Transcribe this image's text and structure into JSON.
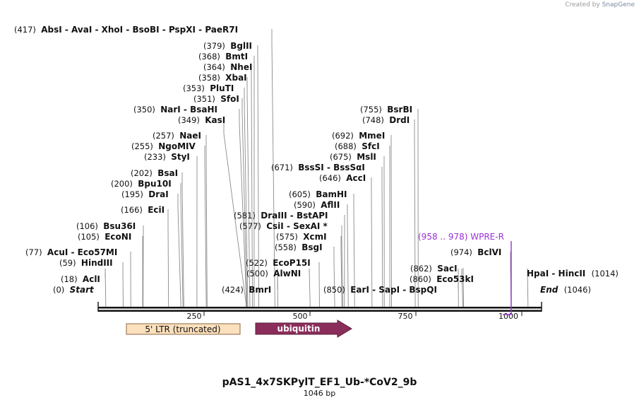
{
  "credit": {
    "prefix": "Created by",
    "brand": "SnapGene"
  },
  "title": "pAS1_4x7SKPylT_EF1_Ub-*CoV2_9b",
  "length_label": "1046 bp",
  "seq_length": 1046,
  "ticks": [
    "250",
    "500",
    "750",
    "1000"
  ],
  "features": [
    {
      "name": "5' LTR (truncated)",
      "start": 69,
      "end": 337,
      "color": "#fde0bd",
      "stroke": "#8a6a40",
      "text_color": "#111111",
      "kind": "box"
    },
    {
      "name": "ubiquitin",
      "start": 373,
      "end": 600,
      "color": "#8b2d5a",
      "stroke": "#5a1d3b",
      "text_color": "#ffffff",
      "kind": "arrow"
    }
  ],
  "primer": {
    "label": "(958 .. 978)  WPRE-R",
    "start": 958,
    "end": 978,
    "color": "#9b30d9"
  },
  "sites": [
    {
      "label": "(417)  AbsI  - AvaI  - XhoI  - BsoBI  - PspXI  - PaeR7I",
      "pos": 417
    },
    {
      "label": "(379)  BglII",
      "pos": 379
    },
    {
      "label": "(368)  BmtI",
      "pos": 368
    },
    {
      "label": "(364)  NheI",
      "pos": 364
    },
    {
      "label": "(358)  XbaI",
      "pos": 358
    },
    {
      "label": "(353)  PluTI",
      "pos": 353
    },
    {
      "label": "(351)  SfoI",
      "pos": 351
    },
    {
      "label": "(350)  NarI  - BsaHI",
      "pos": 350
    },
    {
      "label": "(349)  KasI",
      "pos": 349
    },
    {
      "label": "(257)  NaeI",
      "pos": 257
    },
    {
      "label": "(255)  NgoMIV",
      "pos": 255
    },
    {
      "label": "(233)  StyI",
      "pos": 233
    },
    {
      "label": "(202)  BsaI",
      "pos": 202
    },
    {
      "label": "(200)  Bpu10I",
      "pos": 200
    },
    {
      "label": "(195)  DraI",
      "pos": 195
    },
    {
      "label": "(166)  EciI",
      "pos": 166
    },
    {
      "label": "(106)  Bsu36I",
      "pos": 106
    },
    {
      "label": "(105)  EcoNI",
      "pos": 105
    },
    {
      "label": "(77)  AcuI  - Eco57MI",
      "pos": 77
    },
    {
      "label": "(59)  HindIII",
      "pos": 59
    },
    {
      "label": "(18)  AclI",
      "pos": 18
    },
    {
      "label": "(0)  Start",
      "pos": 0
    },
    {
      "label": "(755)  BsrBI",
      "pos": 755
    },
    {
      "label": "(748)  DrdI",
      "pos": 748
    },
    {
      "label": "(692)  MmeI",
      "pos": 692
    },
    {
      "label": "(688)  SfcI",
      "pos": 688
    },
    {
      "label": "(675)  MslI",
      "pos": 675
    },
    {
      "label": "(671)  BssSI  - BssSαI",
      "pos": 671
    },
    {
      "label": "(646)  AccI",
      "pos": 646
    },
    {
      "label": "(605)  BamHI",
      "pos": 605
    },
    {
      "label": "(590)  AflII",
      "pos": 590
    },
    {
      "label": "(581)  DraIII  - BstAPI",
      "pos": 581
    },
    {
      "label": "(577)  CsiI  - SexAI *",
      "pos": 577
    },
    {
      "label": "(575)  XcmI",
      "pos": 575
    },
    {
      "label": "(558)  BsgI",
      "pos": 558
    },
    {
      "label": "(522)  EcoP15I",
      "pos": 522
    },
    {
      "label": "(500)  AlwNI",
      "pos": 500
    },
    {
      "label": "(424)  BmrI",
      "pos": 424
    },
    {
      "label": "(850)  EarI  - SapI  - BspQI",
      "pos": 850
    },
    {
      "label": "(862)  SacI",
      "pos": 862
    },
    {
      "label": "(860)  Eco53kI",
      "pos": 860
    },
    {
      "label": "(974)  BclVI",
      "pos": 974
    },
    {
      "label": "HpaI  - HincII  (1014)",
      "pos": 1014
    },
    {
      "label": "End  (1046)",
      "pos": 1046
    }
  ]
}
